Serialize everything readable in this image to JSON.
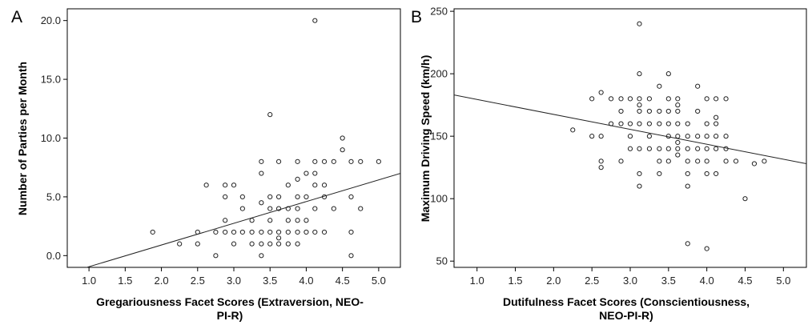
{
  "chart_data": [
    {
      "type": "scatter",
      "panel_label": "A",
      "xlabel": "Gregariousness Facet Scores (Extraversion, NEO-PI-R)",
      "xlabel_lines": [
        "Gregariousness Facet Scores (Extraversion, NEO-",
        "PI-R)"
      ],
      "ylabel": "Number of Parties per Month",
      "xlim": [
        0.7,
        5.3
      ],
      "ylim": [
        -1.0,
        21.0
      ],
      "xticks": [
        1.0,
        1.5,
        2.0,
        2.5,
        3.0,
        3.5,
        4.0,
        4.5,
        5.0
      ],
      "xtick_labels": [
        "1.0",
        "1.5",
        "2.0",
        "2.5",
        "3.0",
        "3.5",
        "4.0",
        "4.5",
        "5.0"
      ],
      "yticks": [
        0,
        5,
        10,
        15,
        20
      ],
      "ytick_labels": [
        "0.0",
        "5.0",
        "10.0",
        "15.0",
        "20.0"
      ],
      "fit_line": {
        "x": [
          0.7,
          5.3
        ],
        "y": [
          -1.5,
          7.0
        ]
      },
      "points": [
        [
          1.88,
          2
        ],
        [
          2.25,
          1
        ],
        [
          2.5,
          1
        ],
        [
          2.5,
          2
        ],
        [
          2.62,
          6
        ],
        [
          2.75,
          0
        ],
        [
          2.75,
          2
        ],
        [
          2.88,
          2
        ],
        [
          2.88,
          3
        ],
        [
          2.88,
          5
        ],
        [
          2.88,
          6
        ],
        [
          3.0,
          1
        ],
        [
          3.0,
          2
        ],
        [
          3.0,
          6
        ],
        [
          3.12,
          2
        ],
        [
          3.12,
          4
        ],
        [
          3.12,
          5
        ],
        [
          3.25,
          1
        ],
        [
          3.25,
          2
        ],
        [
          3.25,
          3
        ],
        [
          3.38,
          0
        ],
        [
          3.38,
          1
        ],
        [
          3.38,
          2
        ],
        [
          3.38,
          4.5
        ],
        [
          3.38,
          7
        ],
        [
          3.38,
          8
        ],
        [
          3.5,
          1
        ],
        [
          3.5,
          2
        ],
        [
          3.5,
          3
        ],
        [
          3.5,
          4
        ],
        [
          3.5,
          5
        ],
        [
          3.5,
          12
        ],
        [
          3.62,
          1
        ],
        [
          3.62,
          1.5
        ],
        [
          3.62,
          2
        ],
        [
          3.62,
          4
        ],
        [
          3.62,
          5
        ],
        [
          3.62,
          8
        ],
        [
          3.75,
          1
        ],
        [
          3.75,
          2
        ],
        [
          3.75,
          3
        ],
        [
          3.75,
          4
        ],
        [
          3.75,
          6
        ],
        [
          3.88,
          1
        ],
        [
          3.88,
          2
        ],
        [
          3.88,
          3
        ],
        [
          3.88,
          4
        ],
        [
          3.88,
          5
        ],
        [
          3.88,
          6.5
        ],
        [
          3.88,
          8
        ],
        [
          4.0,
          2
        ],
        [
          4.0,
          3
        ],
        [
          4.0,
          5
        ],
        [
          4.0,
          7
        ],
        [
          4.12,
          2
        ],
        [
          4.12,
          4
        ],
        [
          4.12,
          6
        ],
        [
          4.12,
          7
        ],
        [
          4.12,
          8
        ],
        [
          4.12,
          20
        ],
        [
          4.25,
          2
        ],
        [
          4.25,
          5
        ],
        [
          4.25,
          6
        ],
        [
          4.25,
          8
        ],
        [
          4.38,
          4
        ],
        [
          4.38,
          8
        ],
        [
          4.5,
          9
        ],
        [
          4.5,
          10
        ],
        [
          4.62,
          0
        ],
        [
          4.62,
          2
        ],
        [
          4.62,
          5
        ],
        [
          4.62,
          8
        ],
        [
          4.75,
          4
        ],
        [
          4.75,
          8
        ],
        [
          5.0,
          8
        ]
      ]
    },
    {
      "type": "scatter",
      "panel_label": "B",
      "xlabel": "Dutifulness Facet Scores (Conscientiousness, NEO-PI-R)",
      "xlabel_lines": [
        "Dutifulness Facet Scores (Conscientiousness,",
        "NEO-PI-R)"
      ],
      "ylabel": "Maximum Driving Speed (km/h)",
      "xlim": [
        0.7,
        5.3
      ],
      "ylim": [
        45,
        252
      ],
      "xticks": [
        1.0,
        1.5,
        2.0,
        2.5,
        3.0,
        3.5,
        4.0,
        4.5,
        5.0
      ],
      "xtick_labels": [
        "1.0",
        "1.5",
        "2.0",
        "2.5",
        "3.0",
        "3.5",
        "4.0",
        "4.5",
        "5.0"
      ],
      "yticks": [
        50,
        100,
        150,
        200,
        250
      ],
      "ytick_labels": [
        "50",
        "100",
        "150",
        "200",
        "250"
      ],
      "fit_line": {
        "x": [
          0.7,
          5.3
        ],
        "y": [
          183,
          128
        ]
      },
      "points": [
        [
          2.25,
          155
        ],
        [
          2.5,
          150
        ],
        [
          2.5,
          180
        ],
        [
          2.62,
          125
        ],
        [
          2.62,
          130
        ],
        [
          2.62,
          150
        ],
        [
          2.62,
          185
        ],
        [
          2.75,
          160
        ],
        [
          2.75,
          180
        ],
        [
          2.88,
          130
        ],
        [
          2.88,
          160
        ],
        [
          2.88,
          170
        ],
        [
          2.88,
          180
        ],
        [
          3.0,
          140
        ],
        [
          3.0,
          150
        ],
        [
          3.0,
          160
        ],
        [
          3.0,
          180
        ],
        [
          3.12,
          110
        ],
        [
          3.12,
          120
        ],
        [
          3.12,
          140
        ],
        [
          3.12,
          160
        ],
        [
          3.12,
          170
        ],
        [
          3.12,
          175
        ],
        [
          3.12,
          180
        ],
        [
          3.12,
          200
        ],
        [
          3.12,
          240
        ],
        [
          3.25,
          140
        ],
        [
          3.25,
          150
        ],
        [
          3.25,
          160
        ],
        [
          3.25,
          170
        ],
        [
          3.25,
          180
        ],
        [
          3.38,
          120
        ],
        [
          3.38,
          130
        ],
        [
          3.38,
          140
        ],
        [
          3.38,
          160
        ],
        [
          3.38,
          170
        ],
        [
          3.38,
          190
        ],
        [
          3.5,
          130
        ],
        [
          3.5,
          140
        ],
        [
          3.5,
          150
        ],
        [
          3.5,
          160
        ],
        [
          3.5,
          170
        ],
        [
          3.5,
          180
        ],
        [
          3.5,
          200
        ],
        [
          3.62,
          135
        ],
        [
          3.62,
          140
        ],
        [
          3.62,
          145
        ],
        [
          3.62,
          150
        ],
        [
          3.62,
          160
        ],
        [
          3.62,
          170
        ],
        [
          3.62,
          175
        ],
        [
          3.62,
          180
        ],
        [
          3.75,
          64
        ],
        [
          3.75,
          110
        ],
        [
          3.75,
          120
        ],
        [
          3.75,
          130
        ],
        [
          3.75,
          140
        ],
        [
          3.75,
          150
        ],
        [
          3.75,
          160
        ],
        [
          3.88,
          130
        ],
        [
          3.88,
          140
        ],
        [
          3.88,
          150
        ],
        [
          3.88,
          170
        ],
        [
          3.88,
          190
        ],
        [
          4.0,
          60
        ],
        [
          4.0,
          120
        ],
        [
          4.0,
          130
        ],
        [
          4.0,
          140
        ],
        [
          4.0,
          150
        ],
        [
          4.0,
          160
        ],
        [
          4.0,
          180
        ],
        [
          4.12,
          120
        ],
        [
          4.12,
          140
        ],
        [
          4.12,
          150
        ],
        [
          4.12,
          160
        ],
        [
          4.12,
          165
        ],
        [
          4.12,
          180
        ],
        [
          4.25,
          130
        ],
        [
          4.25,
          140
        ],
        [
          4.25,
          150
        ],
        [
          4.25,
          180
        ],
        [
          4.38,
          130
        ],
        [
          4.5,
          100
        ],
        [
          4.62,
          128
        ],
        [
          4.75,
          130
        ]
      ]
    }
  ]
}
